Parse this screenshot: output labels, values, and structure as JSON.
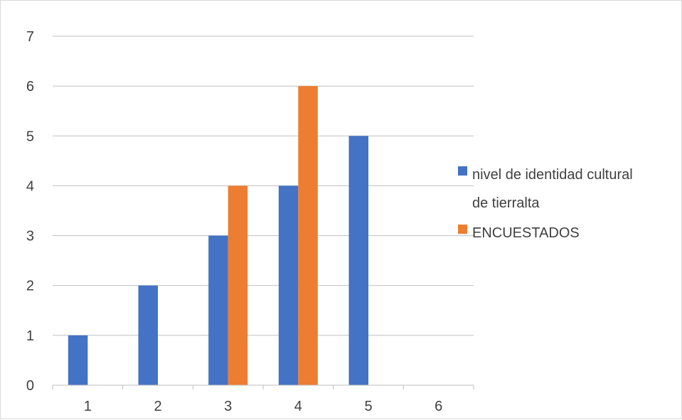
{
  "chart_data": {
    "type": "bar",
    "categories": [
      "1",
      "2",
      "3",
      "4",
      "5",
      "6"
    ],
    "series": [
      {
        "name": "nivel de identidad cultural de tierralta",
        "values": [
          1,
          2,
          3,
          4,
          5,
          0
        ],
        "color": "#4472C4"
      },
      {
        "name": "ENCUESTADOS",
        "values": [
          0,
          0,
          4,
          6,
          0,
          0
        ],
        "color": "#ED7D31"
      }
    ],
    "ylim": [
      0,
      7
    ],
    "yticks": [
      "0",
      "1",
      "2",
      "3",
      "4",
      "5",
      "6",
      "7"
    ],
    "grid": true,
    "legend_position": "right",
    "legend_lines": [
      [
        "nivel de identidad cultural",
        "de tierralta"
      ],
      [
        "ENCUESTADOS"
      ]
    ],
    "gridline_color": "#bfbfbf",
    "axis_color": "#bfbfbf"
  }
}
